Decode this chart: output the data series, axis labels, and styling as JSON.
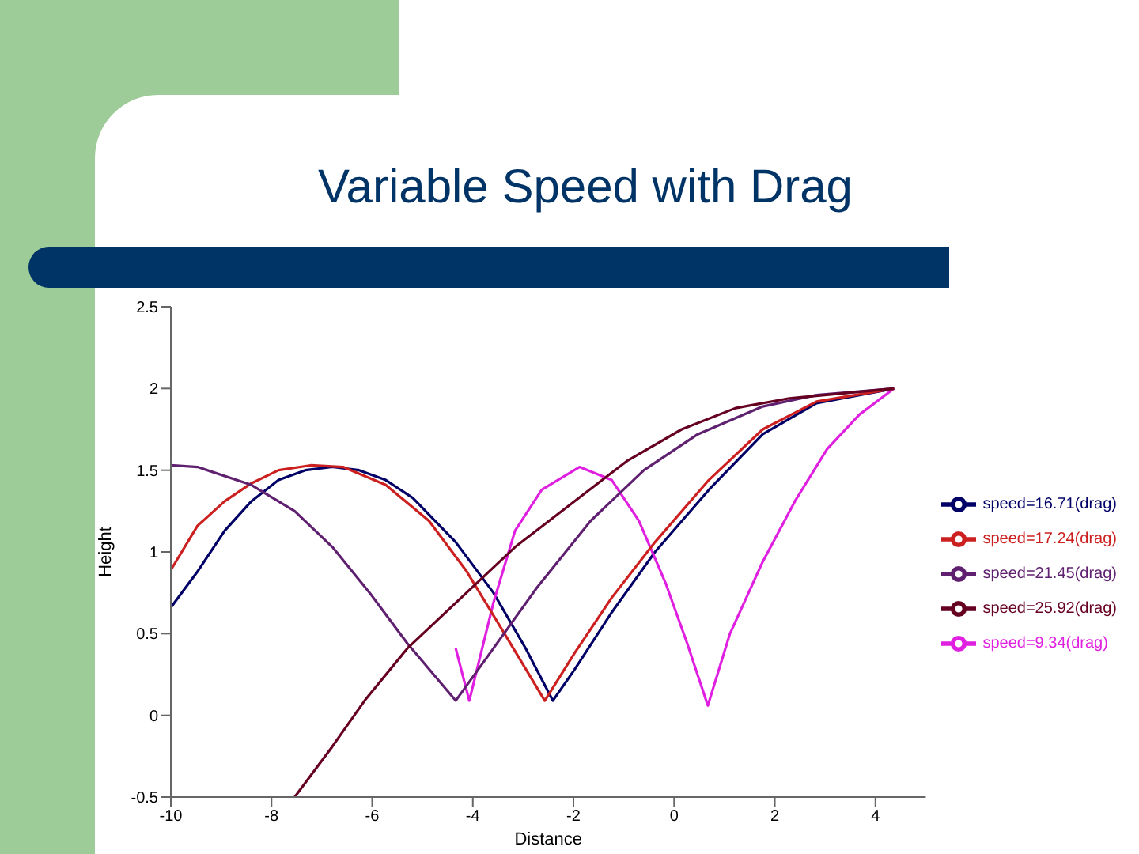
{
  "chart_data": {
    "type": "line",
    "title": "Variable Speed with Drag",
    "xlabel": "Distance",
    "ylabel": "Height",
    "xlim": [
      -10,
      5
    ],
    "xticks": [
      -10,
      -8,
      -6,
      -4,
      -2,
      0,
      2,
      4
    ],
    "ylim": [
      -0.5,
      2.5
    ],
    "yticks": [
      -0.5,
      0,
      0.5,
      1,
      1.5,
      2,
      2.5
    ],
    "legend": "right",
    "series": [
      {
        "name": "speed=16.71(drag)",
        "color": "#000066",
        "x": [
          -10,
          -9.47,
          -8.93,
          -8.4,
          -7.86,
          -7.33,
          -6.79,
          -6.26,
          -5.73,
          -5.19,
          -4.34,
          -3.59,
          -2.95,
          -2.41,
          -1.98,
          -1.24,
          -0.38,
          0.69,
          1.76,
          2.83,
          4.37
        ],
        "values": [
          0.66,
          0.88,
          1.13,
          1.31,
          1.44,
          1.5,
          1.52,
          1.5,
          1.44,
          1.33,
          1.06,
          0.75,
          0.41,
          0.09,
          0.28,
          0.63,
          1.0,
          1.38,
          1.72,
          1.91,
          2.0
        ]
      },
      {
        "name": "speed=9.34(drag)",
        "color": "#e020e0",
        "x": [
          -4.34,
          -4.07,
          -3.59,
          -3.16,
          -2.63,
          -1.88,
          -1.24,
          -0.7,
          -0.17,
          0.26,
          0.67,
          1.11,
          1.76,
          2.4,
          3.04,
          3.68,
          4.37
        ],
        "values": [
          0.41,
          0.09,
          0.69,
          1.13,
          1.38,
          1.52,
          1.44,
          1.19,
          0.81,
          0.44,
          0.06,
          0.5,
          0.94,
          1.31,
          1.63,
          1.84,
          2.0
        ]
      },
      {
        "name": "speed=17.24(drag)",
        "color": "#cc2020",
        "x": [
          -10,
          -9.47,
          -8.93,
          -8.4,
          -7.86,
          -7.22,
          -6.58,
          -5.73,
          -4.87,
          -4.12,
          -3.37,
          -2.57,
          -1.98,
          -1.24,
          -0.38,
          0.69,
          1.76,
          2.83,
          4.37
        ],
        "values": [
          0.89,
          1.16,
          1.31,
          1.42,
          1.5,
          1.53,
          1.52,
          1.41,
          1.19,
          0.88,
          0.5,
          0.09,
          0.38,
          0.72,
          1.06,
          1.44,
          1.75,
          1.92,
          2.0
        ]
      },
      {
        "name": "speed=21.45(drag)",
        "color": "#602070",
        "x": [
          -10,
          -9.47,
          -8.4,
          -7.54,
          -6.79,
          -6.05,
          -5.3,
          -4.34,
          -3.59,
          -2.73,
          -1.66,
          -0.6,
          0.47,
          1.76,
          2.83,
          4.37
        ],
        "values": [
          1.53,
          1.52,
          1.41,
          1.25,
          1.03,
          0.75,
          0.44,
          0.09,
          0.41,
          0.78,
          1.19,
          1.5,
          1.72,
          1.89,
          1.96,
          2.0
        ]
      },
      {
        "name": "speed=25.92(drag)",
        "color": "#660020",
        "x": [
          -7.54,
          -6.79,
          -6.15,
          -5.3,
          -4.23,
          -3.16,
          -1.98,
          -0.92,
          0.15,
          1.22,
          2.29,
          4.37
        ],
        "values": [
          -0.5,
          -0.19,
          0.09,
          0.41,
          0.72,
          1.03,
          1.31,
          1.56,
          1.75,
          1.88,
          1.94,
          2.0
        ]
      }
    ]
  }
}
